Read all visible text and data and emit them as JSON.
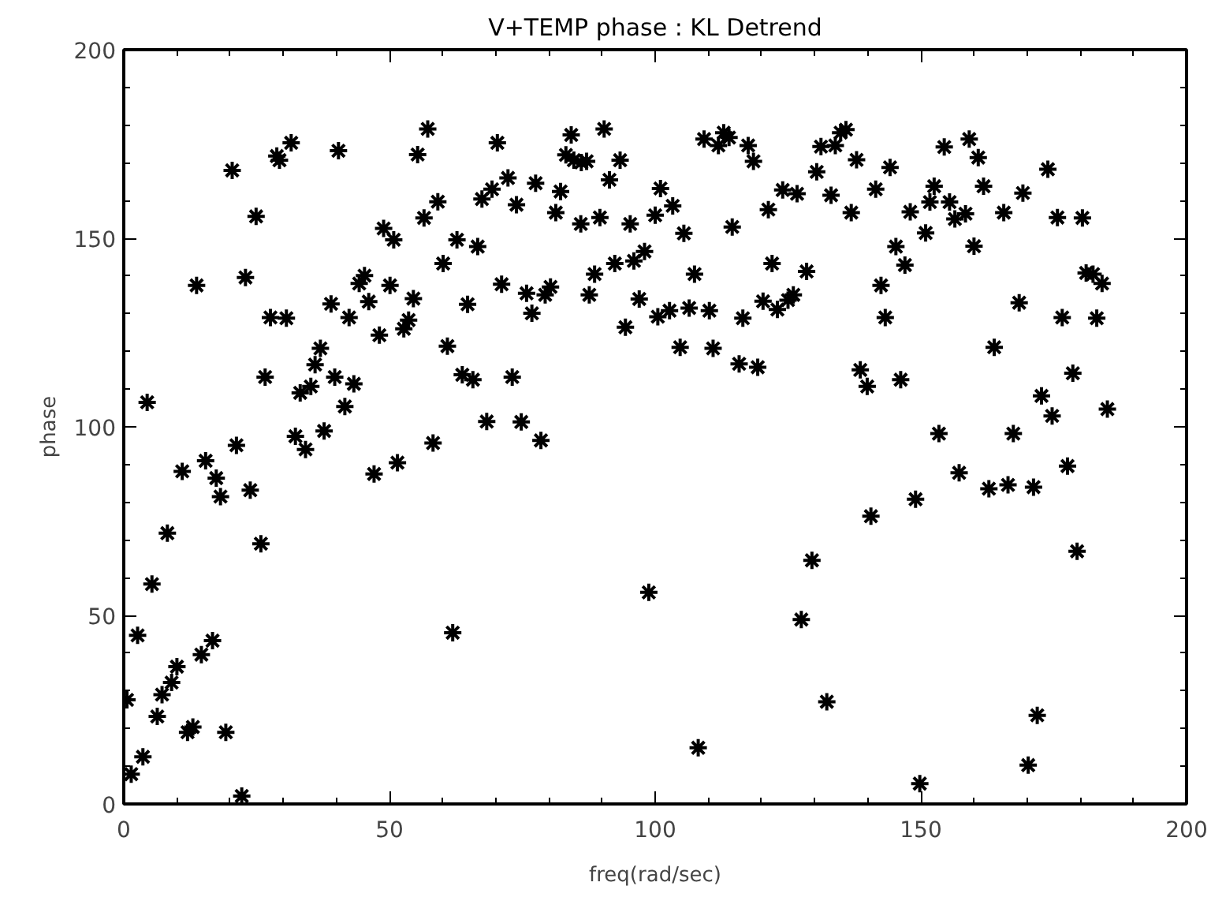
{
  "chart_data": {
    "type": "scatter",
    "title": "V+TEMP phase : KL Detrend",
    "xlabel": "freq(rad/sec)",
    "ylabel": "phase",
    "xlim": [
      0,
      200
    ],
    "ylim": [
      0,
      200
    ],
    "xticks": [
      0,
      50,
      100,
      150,
      200
    ],
    "yticks": [
      0,
      50,
      100,
      150,
      200
    ],
    "grid": false,
    "marker": "cross",
    "series": [
      {
        "color": "#000000",
        "x": [
          4.4,
          13.7,
          20.4,
          22.9,
          24.9,
          26.6,
          27.6,
          28.8,
          29.3,
          30.6,
          31.5,
          33.2,
          35.2,
          36.0,
          37.0,
          39.0,
          39.7,
          40.4,
          41.6,
          42.4,
          43.3,
          44.3,
          45.3,
          46.1,
          48.1,
          48.9,
          50.1,
          50.8,
          52.7,
          53.6,
          54.5,
          55.3,
          56.5,
          57.2,
          59.1,
          60.1,
          60.9,
          62.7,
          63.7,
          65.7,
          64.7,
          66.6,
          67.4,
          69.3,
          70.3,
          71.1,
          72.3,
          73.1,
          73.9,
          75.8,
          76.8,
          77.5,
          79.3,
          80.3,
          81.3,
          82.2,
          83.2,
          84.2,
          84.7,
          86.1,
          87.1,
          86.0,
          87.6,
          88.6,
          89.6,
          90.4,
          91.4,
          92.4,
          93.4,
          94.4,
          95.3,
          96.0,
          97.0,
          98.0,
          100.0,
          100.5,
          101.0,
          103.3,
          102.7,
          104.7,
          105.4,
          106.4,
          107.4,
          109.2,
          110.2,
          110.9,
          111.9,
          112.9,
          113.9,
          114.5,
          115.8,
          116.5,
          117.5,
          118.5,
          119.3,
          120.3,
          121.3,
          122.0,
          123.0,
          124.0,
          126.7,
          125.0,
          126.0,
          128.5,
          130.4,
          131.2,
          133.9,
          133.1,
          134.9,
          135.9,
          136.9,
          137.9,
          138.6,
          139.9,
          141.5,
          142.5,
          143.3,
          144.2,
          145.3,
          146.2,
          147.0,
          148.0,
          150.9,
          151.7,
          152.5,
          154.4,
          155.4,
          156.4,
          158.4,
          159.1,
          160.0,
          160.8,
          161.8,
          163.8,
          165.6,
          168.5,
          169.2,
          172.7,
          173.9,
          175.7,
          180.4,
          176.6,
          178.6,
          181.1,
          182.4,
          183.1,
          184.1,
          185.1,
          174.7,
          68.3,
          74.8,
          78.5,
          32.3,
          34.2,
          37.7,
          21.2,
          58.2,
          11.0,
          15.4,
          17.4,
          18.2,
          23.8,
          47.1,
          51.5,
          8.2,
          25.8,
          5.3,
          98.8,
          61.9,
          2.6,
          16.7,
          14.6,
          10.0,
          9.0,
          7.2,
          0.6,
          6.3,
          12.0,
          13.0,
          19.2,
          3.6,
          1.4,
          22.2,
          153.4,
          167.4,
          157.2,
          162.8,
          166.4,
          171.2,
          177.6,
          179.4,
          149.0,
          140.6,
          129.5,
          127.5,
          132.3,
          108.1,
          149.8,
          171.9,
          170.2
        ],
        "values": [
          106.5,
          137.5,
          168.0,
          139.6,
          155.8,
          113.2,
          129.0,
          171.8,
          170.7,
          128.8,
          175.3,
          109.0,
          110.7,
          116.5,
          120.8,
          132.6,
          113.2,
          173.2,
          105.4,
          129.0,
          111.4,
          138.0,
          140.1,
          133.2,
          124.3,
          152.6,
          137.5,
          149.6,
          126.0,
          128.3,
          134.0,
          172.2,
          155.4,
          179.0,
          159.7,
          143.3,
          121.4,
          149.6,
          113.8,
          112.5,
          132.5,
          147.8,
          160.4,
          163.0,
          175.3,
          137.8,
          166.0,
          113.2,
          158.9,
          135.4,
          130.1,
          164.6,
          135.0,
          137.1,
          156.8,
          162.4,
          172.1,
          177.4,
          170.7,
          170.1,
          170.4,
          153.8,
          135.0,
          140.5,
          155.5,
          179.0,
          165.5,
          143.3,
          170.7,
          126.4,
          153.8,
          144.0,
          133.9,
          146.5,
          156.1,
          129.2,
          163.2,
          158.6,
          130.8,
          121.1,
          151.3,
          131.5,
          140.5,
          176.3,
          130.8,
          120.8,
          174.6,
          178.0,
          176.7,
          153.0,
          116.7,
          128.8,
          174.6,
          170.4,
          115.8,
          133.3,
          157.6,
          143.3,
          131.1,
          162.8,
          161.8,
          133.6,
          135.0,
          141.2,
          167.6,
          174.3,
          174.6,
          161.4,
          178.0,
          178.8,
          156.8,
          170.8,
          115.1,
          110.7,
          163.0,
          137.5,
          129.0,
          168.8,
          147.8,
          112.5,
          142.9,
          157.0,
          151.4,
          159.6,
          163.8,
          174.2,
          159.6,
          155.1,
          156.5,
          176.3,
          147.9,
          171.4,
          163.8,
          121.1,
          156.8,
          132.9,
          162.0,
          108.2,
          168.3,
          155.5,
          155.4,
          129.0,
          114.2,
          140.8,
          140.5,
          128.8,
          138.0,
          104.7,
          102.9,
          101.4,
          101.3,
          96.4,
          97.5,
          94.0,
          98.9,
          95.1,
          95.7,
          88.2,
          91.0,
          86.4,
          81.5,
          83.2,
          87.5,
          90.5,
          71.8,
          69.0,
          58.3,
          56.1,
          45.4,
          44.7,
          43.3,
          39.6,
          36.4,
          32.2,
          29.0,
          27.6,
          23.2,
          19.0,
          20.4,
          19.0,
          12.5,
          7.9,
          2.1,
          98.2,
          98.2,
          87.8,
          83.6,
          84.6,
          84.0,
          89.6,
          67.0,
          80.8,
          76.3,
          64.6,
          48.9,
          27.1,
          14.9,
          5.4,
          23.5,
          10.3
        ]
      }
    ]
  }
}
